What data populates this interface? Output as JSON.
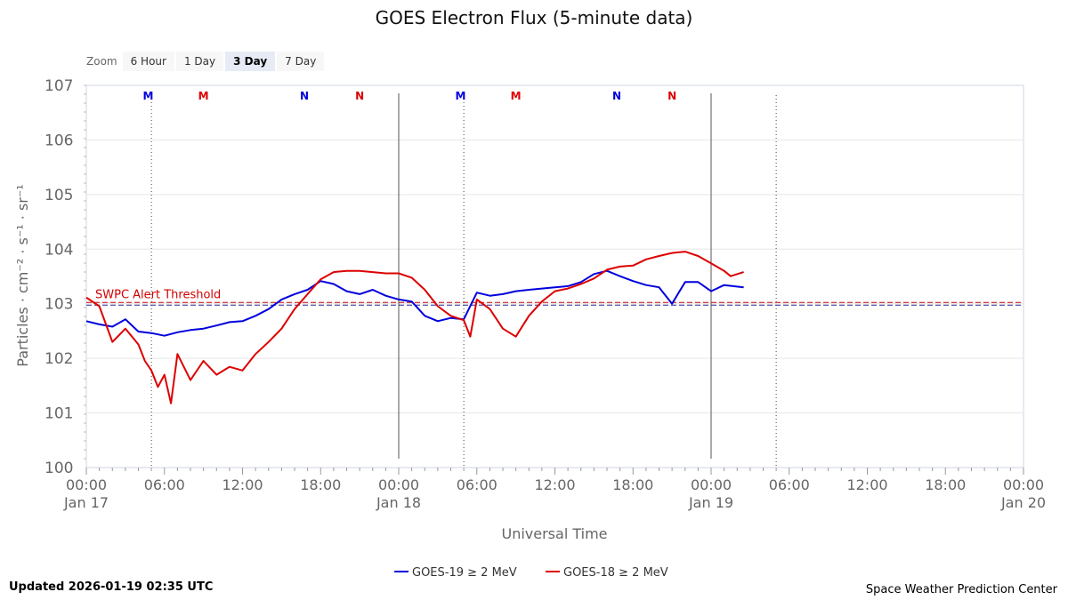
{
  "zoom": {
    "label": "Zoom",
    "buttons": [
      "6 Hour",
      "1 Day",
      "3 Day",
      "7 Day"
    ],
    "active": "3 Day"
  },
  "footer": {
    "updated": "Updated 2026-01-19 02:35 UTC",
    "credit": "Space Weather Prediction Center"
  },
  "colors": {
    "goes19": "#0000dd",
    "goes18": "#dd0000",
    "threshold": "#d00000"
  },
  "chart_data": {
    "type": "line",
    "title": "GOES Electron Flux (5-minute data)",
    "xlabel": "Universal Time",
    "ylabel": "Particles · cm⁻² · s⁻¹ · sr⁻¹",
    "yscale": "log",
    "ylim": [
      1,
      10000000
    ],
    "y_tick_labels": [
      {
        "base": "10",
        "exp": "0"
      },
      {
        "base": "10",
        "exp": "1"
      },
      {
        "base": "10",
        "exp": "2"
      },
      {
        "base": "10",
        "exp": "3"
      },
      {
        "base": "10",
        "exp": "4"
      },
      {
        "base": "10",
        "exp": "5"
      },
      {
        "base": "10",
        "exp": "6"
      },
      {
        "base": "10",
        "exp": "7"
      }
    ],
    "xlim": [
      "2026-01-17 00:00",
      "2026-01-20 00:00"
    ],
    "x_tick_labels": [
      {
        "time": "00:00",
        "date": "Jan 17"
      },
      {
        "time": "06:00",
        "date": ""
      },
      {
        "time": "12:00",
        "date": ""
      },
      {
        "time": "18:00",
        "date": ""
      },
      {
        "time": "00:00",
        "date": "Jan 18"
      },
      {
        "time": "06:00",
        "date": ""
      },
      {
        "time": "12:00",
        "date": ""
      },
      {
        "time": "18:00",
        "date": ""
      },
      {
        "time": "00:00",
        "date": "Jan 19"
      },
      {
        "time": "06:00",
        "date": ""
      },
      {
        "time": "12:00",
        "date": ""
      },
      {
        "time": "18:00",
        "date": ""
      },
      {
        "time": "00:00",
        "date": "Jan 20"
      }
    ],
    "grid": true,
    "legend": "bottom-center",
    "threshold": {
      "label": "SWPC Alert Threshold",
      "value": 1000
    },
    "day_boundaries": [
      "2026-01-18 00:00",
      "2026-01-19 00:00"
    ],
    "midnight_lines": [
      "2026-01-17 05:00",
      "2026-01-18 05:00",
      "2026-01-19 05:00"
    ],
    "markers": [
      {
        "label": "M",
        "time": "2026-01-17 04:45",
        "sat": "goes19"
      },
      {
        "label": "M",
        "time": "2026-01-17 09:00",
        "sat": "goes18"
      },
      {
        "label": "N",
        "time": "2026-01-17 16:45",
        "sat": "goes19"
      },
      {
        "label": "N",
        "time": "2026-01-17 21:00",
        "sat": "goes18"
      },
      {
        "label": "M",
        "time": "2026-01-18 04:45",
        "sat": "goes19"
      },
      {
        "label": "M",
        "time": "2026-01-18 09:00",
        "sat": "goes18"
      },
      {
        "label": "N",
        "time": "2026-01-18 16:45",
        "sat": "goes19"
      },
      {
        "label": "N",
        "time": "2026-01-18 21:00",
        "sat": "goes18"
      }
    ],
    "series": [
      {
        "name": "GOES-19 ≥ 2 MeV",
        "key": "goes19",
        "x": [
          "2026-01-17 00:00",
          "2026-01-17 01:00",
          "2026-01-17 02:00",
          "2026-01-17 03:00",
          "2026-01-17 04:00",
          "2026-01-17 05:00",
          "2026-01-17 06:00",
          "2026-01-17 07:00",
          "2026-01-17 08:00",
          "2026-01-17 09:00",
          "2026-01-17 10:00",
          "2026-01-17 11:00",
          "2026-01-17 12:00",
          "2026-01-17 13:00",
          "2026-01-17 14:00",
          "2026-01-17 15:00",
          "2026-01-17 16:00",
          "2026-01-17 17:00",
          "2026-01-17 18:00",
          "2026-01-17 19:00",
          "2026-01-17 20:00",
          "2026-01-17 21:00",
          "2026-01-17 22:00",
          "2026-01-17 23:00",
          "2026-01-18 00:00",
          "2026-01-18 01:00",
          "2026-01-18 02:00",
          "2026-01-18 03:00",
          "2026-01-18 04:00",
          "2026-01-18 05:00",
          "2026-01-18 06:00",
          "2026-01-18 07:00",
          "2026-01-18 08:00",
          "2026-01-18 09:00",
          "2026-01-18 10:00",
          "2026-01-18 11:00",
          "2026-01-18 12:00",
          "2026-01-18 13:00",
          "2026-01-18 14:00",
          "2026-01-18 15:00",
          "2026-01-18 16:00",
          "2026-01-18 17:00",
          "2026-01-18 18:00",
          "2026-01-18 19:00",
          "2026-01-18 20:00",
          "2026-01-18 21:00",
          "2026-01-18 22:00",
          "2026-01-18 23:00",
          "2026-01-19 00:00",
          "2026-01-19 01:00",
          "2026-01-19 02:30"
        ],
        "y": [
          480,
          420,
          380,
          520,
          310,
          290,
          260,
          300,
          330,
          350,
          400,
          460,
          480,
          600,
          800,
          1200,
          1500,
          1800,
          2600,
          2300,
          1700,
          1500,
          1800,
          1400,
          1200,
          1100,
          600,
          480,
          550,
          520,
          1600,
          1400,
          1500,
          1700,
          1800,
          1900,
          2000,
          2100,
          2500,
          3500,
          4000,
          3200,
          2600,
          2200,
          2000,
          1000,
          2500,
          2500,
          1700,
          2200,
          2000
        ]
      },
      {
        "name": "GOES-18 ≥ 2 MeV",
        "key": "goes18",
        "x": [
          "2026-01-17 00:00",
          "2026-01-17 01:00",
          "2026-01-17 02:00",
          "2026-01-17 03:00",
          "2026-01-17 04:00",
          "2026-01-17 04:30",
          "2026-01-17 05:00",
          "2026-01-17 05:30",
          "2026-01-17 06:00",
          "2026-01-17 06:30",
          "2026-01-17 07:00",
          "2026-01-17 08:00",
          "2026-01-17 09:00",
          "2026-01-17 10:00",
          "2026-01-17 11:00",
          "2026-01-17 12:00",
          "2026-01-17 13:00",
          "2026-01-17 14:00",
          "2026-01-17 15:00",
          "2026-01-17 16:00",
          "2026-01-17 17:00",
          "2026-01-17 18:00",
          "2026-01-17 19:00",
          "2026-01-17 20:00",
          "2026-01-17 21:00",
          "2026-01-17 22:00",
          "2026-01-17 23:00",
          "2026-01-18 00:00",
          "2026-01-18 01:00",
          "2026-01-18 02:00",
          "2026-01-18 03:00",
          "2026-01-18 04:00",
          "2026-01-18 05:00",
          "2026-01-18 05:30",
          "2026-01-18 06:00",
          "2026-01-18 07:00",
          "2026-01-18 08:00",
          "2026-01-18 09:00",
          "2026-01-18 10:00",
          "2026-01-18 11:00",
          "2026-01-18 12:00",
          "2026-01-18 13:00",
          "2026-01-18 14:00",
          "2026-01-18 15:00",
          "2026-01-18 16:00",
          "2026-01-18 17:00",
          "2026-01-18 18:00",
          "2026-01-18 19:00",
          "2026-01-18 20:00",
          "2026-01-18 21:00",
          "2026-01-18 22:00",
          "2026-01-18 23:00",
          "2026-01-19 00:00",
          "2026-01-19 01:00",
          "2026-01-19 01:30",
          "2026-01-19 02:30"
        ],
        "y": [
          1300,
          900,
          200,
          350,
          180,
          90,
          60,
          30,
          50,
          15,
          120,
          40,
          90,
          50,
          70,
          60,
          120,
          200,
          350,
          800,
          1500,
          2800,
          3800,
          4000,
          4000,
          3800,
          3600,
          3600,
          3000,
          1800,
          900,
          600,
          500,
          250,
          1200,
          800,
          350,
          250,
          600,
          1100,
          1700,
          1900,
          2300,
          2900,
          4200,
          4800,
          5000,
          6500,
          7500,
          8500,
          9000,
          7500,
          5500,
          4000,
          3200,
          3800
        ]
      }
    ]
  }
}
